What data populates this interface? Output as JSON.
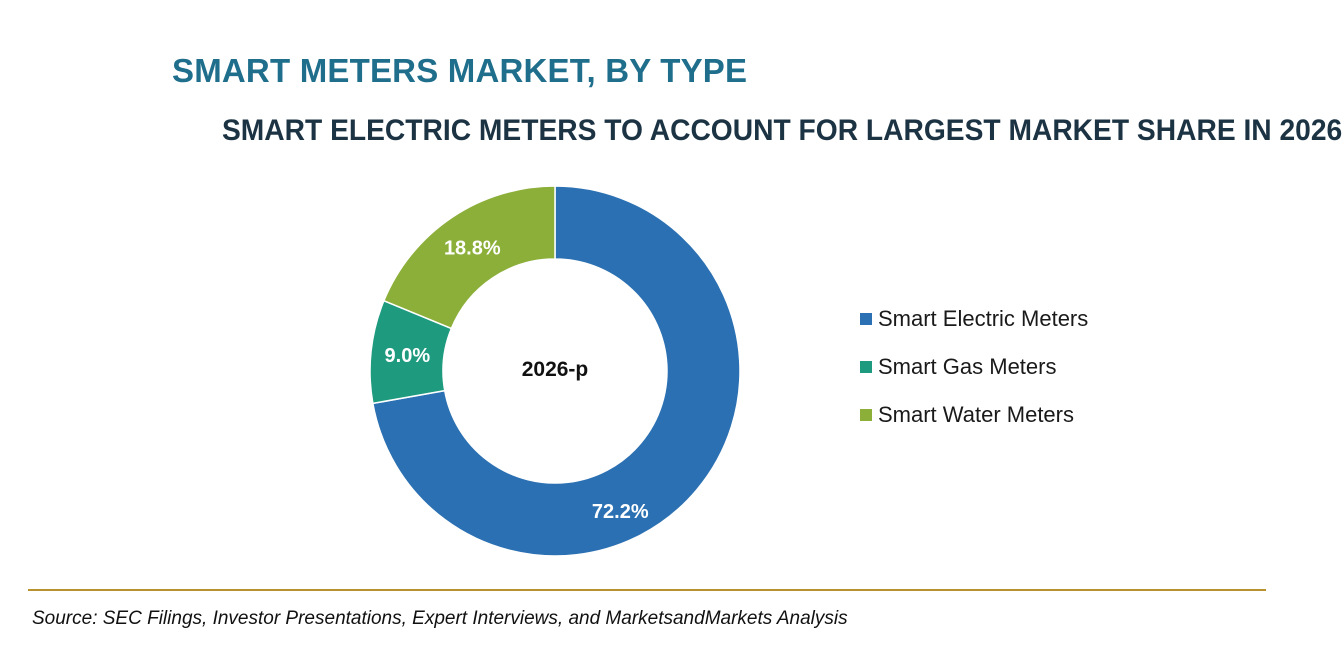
{
  "header": {
    "title": "SMART METERS MARKET, BY TYPE",
    "subtitle": "SMART ELECTRIC METERS TO ACCOUNT FOR LARGEST MARKET SHARE IN 2026"
  },
  "chart_data": {
    "type": "pie",
    "donut": true,
    "center_label": "2026-p",
    "categories": [
      "Smart Electric Meters",
      "Smart Gas Meters",
      "Smart Water Meters"
    ],
    "values": [
      72.2,
      9.0,
      18.8
    ],
    "value_labels": [
      "72.2%",
      "9.0%",
      "18.8%"
    ],
    "colors": [
      "#2b70b2",
      "#1e9a7f",
      "#8caf3a"
    ],
    "legend_position": "right",
    "title": "SMART METERS MARKET, BY TYPE"
  },
  "legend": {
    "items": [
      {
        "label": "Smart Electric Meters",
        "color": "#2b70b2"
      },
      {
        "label": "Smart Gas Meters",
        "color": "#1e9a7f"
      },
      {
        "label": "Smart Water Meters",
        "color": "#8caf3a"
      }
    ]
  },
  "footer": {
    "source": "Source: SEC Filings, Investor Presentations, Expert Interviews, and MarketsandMarkets Analysis"
  }
}
